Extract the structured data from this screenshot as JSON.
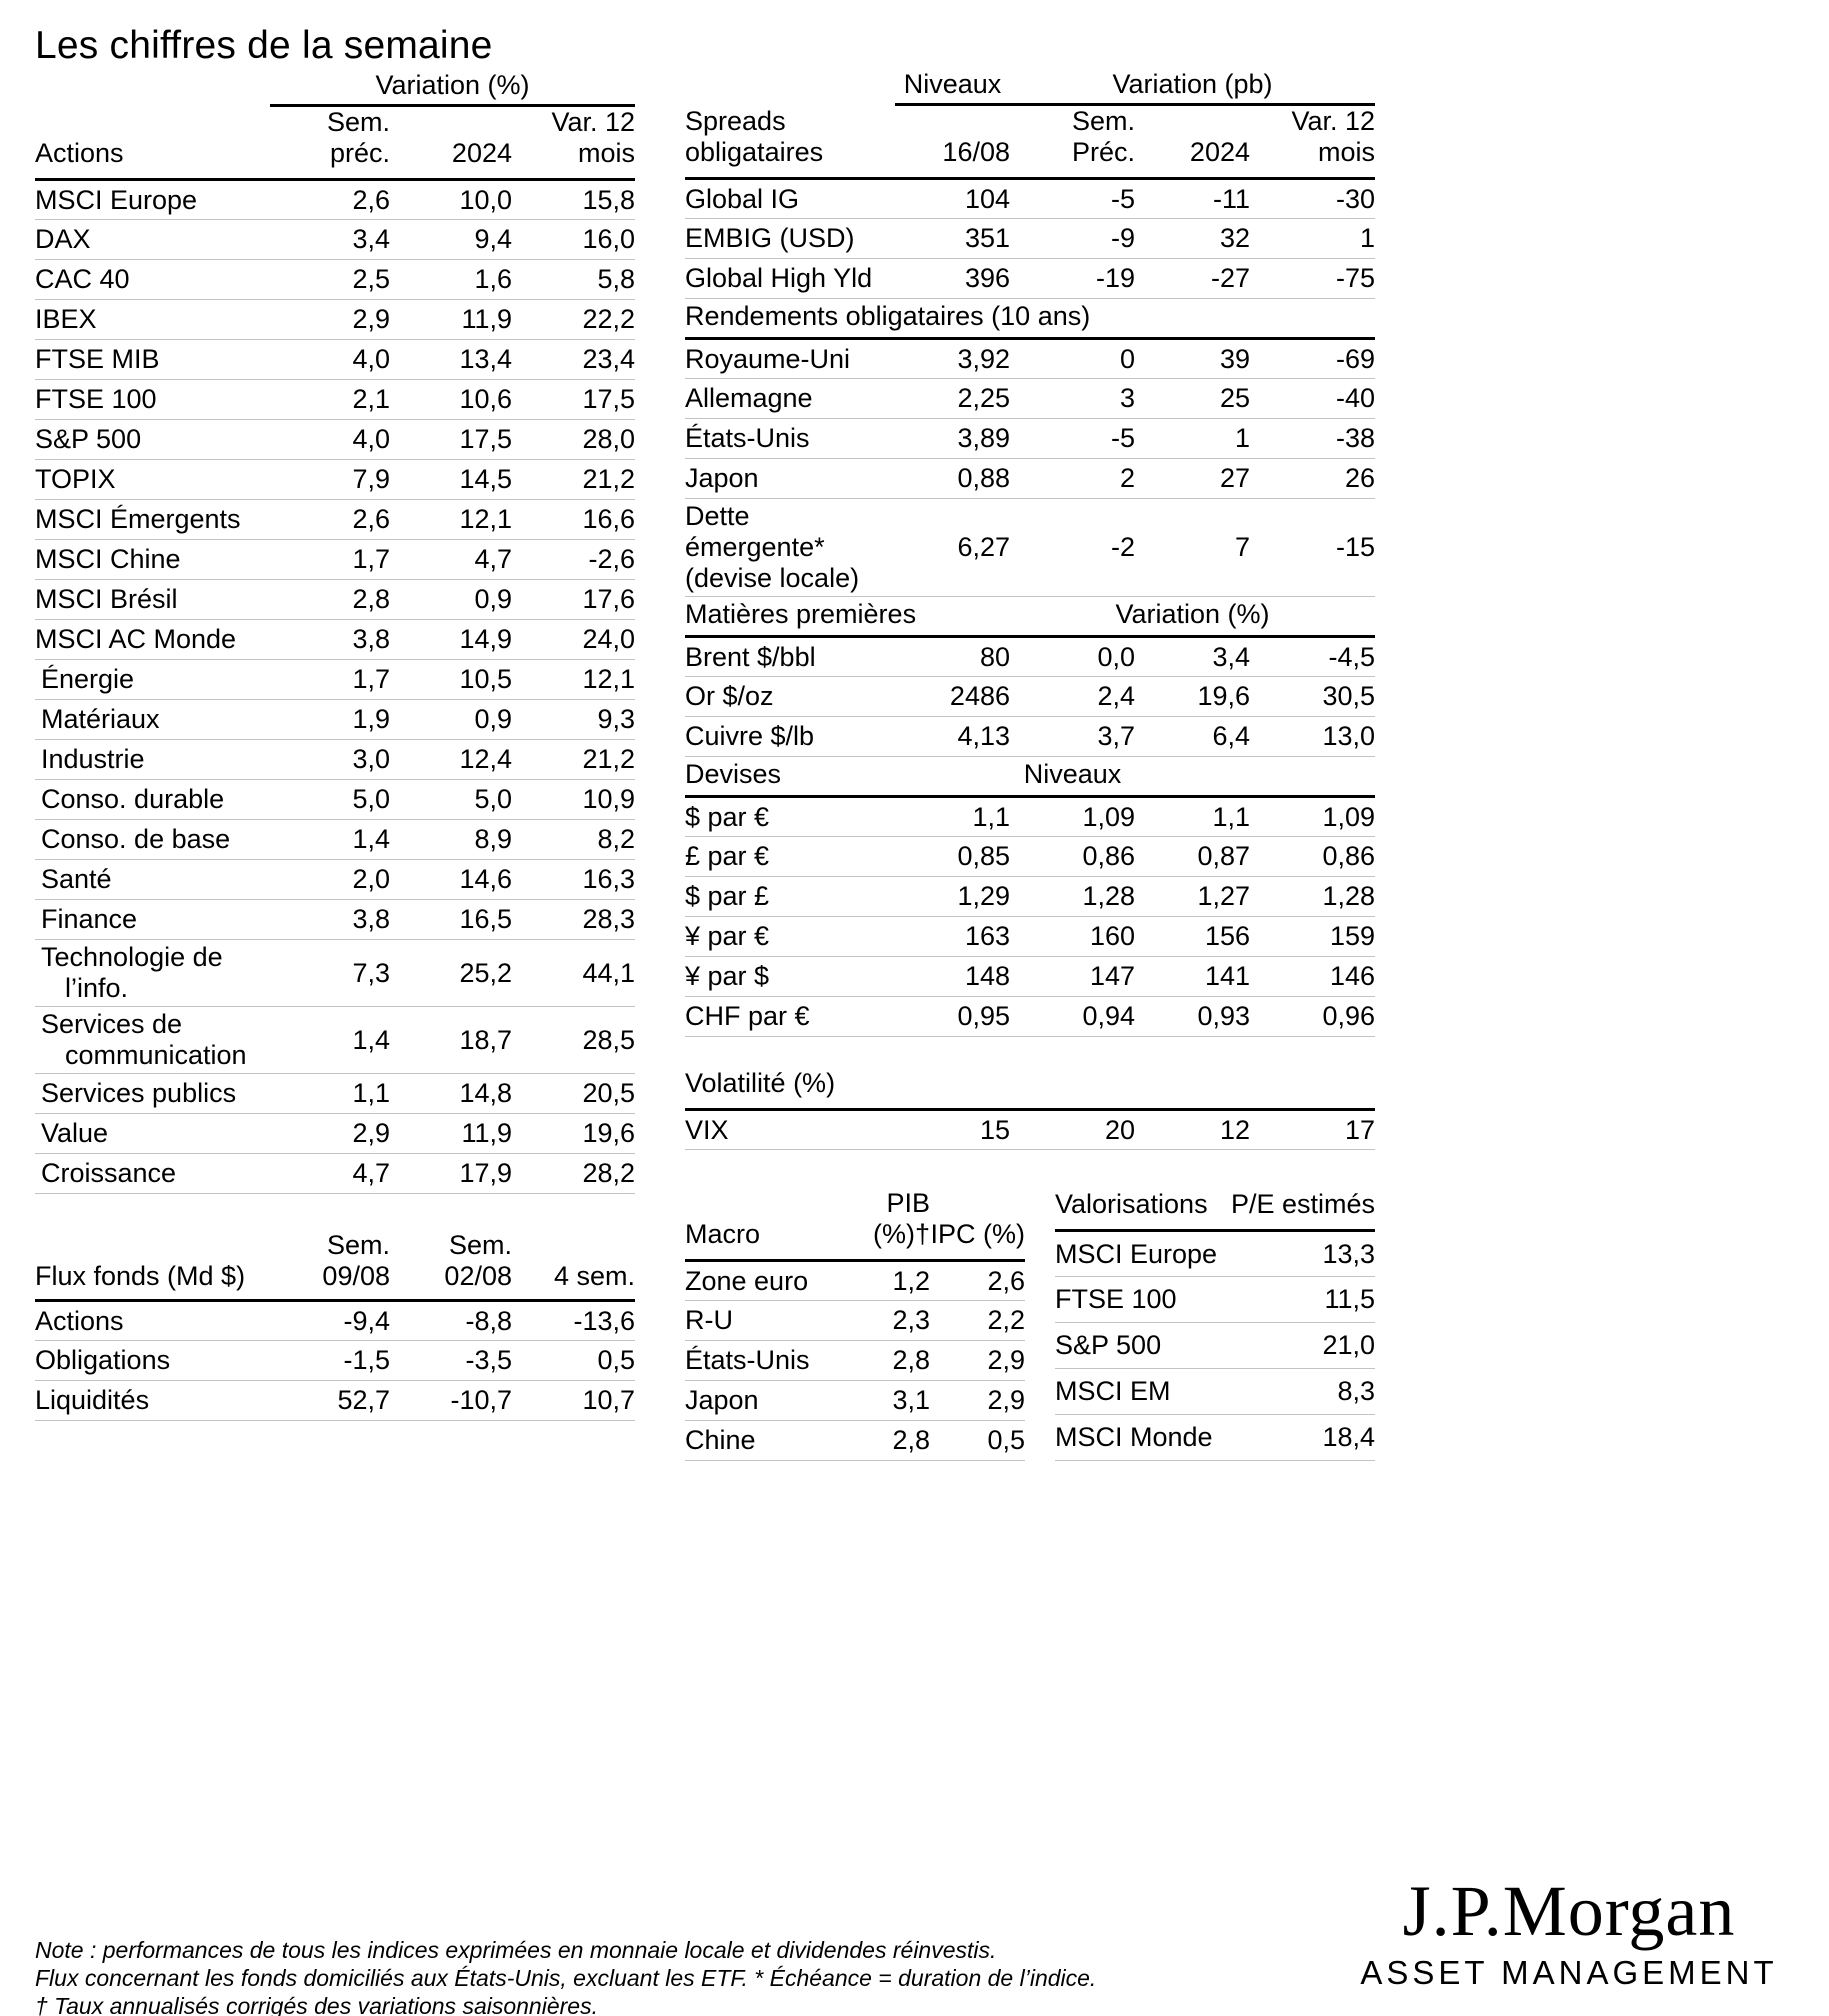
{
  "title": "Les chiffres de la semaine",
  "equities": {
    "group_header": "Variation (%)",
    "columns": [
      "Actions",
      "Sem. préc.",
      "2024",
      "Var. 12 mois"
    ],
    "rows": [
      {
        "label": "MSCI Europe",
        "values": [
          "2,6",
          "10,0",
          "15,8"
        ]
      },
      {
        "label": "DAX",
        "values": [
          "3,4",
          "9,4",
          "16,0"
        ]
      },
      {
        "label": "CAC 40",
        "values": [
          "2,5",
          "1,6",
          "5,8"
        ]
      },
      {
        "label": "IBEX",
        "values": [
          "2,9",
          "11,9",
          "22,2"
        ]
      },
      {
        "label": "FTSE MIB",
        "values": [
          "4,0",
          "13,4",
          "23,4"
        ]
      },
      {
        "label": "FTSE 100",
        "values": [
          "2,1",
          "10,6",
          "17,5"
        ]
      },
      {
        "label": "S&P 500",
        "values": [
          "4,0",
          "17,5",
          "28,0"
        ]
      },
      {
        "label": "TOPIX",
        "values": [
          "7,9",
          "14,5",
          "21,2"
        ]
      },
      {
        "label": "MSCI Émergents",
        "values": [
          "2,6",
          "12,1",
          "16,6"
        ]
      },
      {
        "label": "MSCI Chine",
        "values": [
          "1,7",
          "4,7",
          "-2,6"
        ]
      },
      {
        "label": "MSCI Brésil",
        "values": [
          "2,8",
          "0,9",
          "17,6"
        ]
      },
      {
        "label": "MSCI AC Monde",
        "values": [
          "3,8",
          "14,9",
          "24,0"
        ]
      },
      {
        "label": "Énergie",
        "indent": true,
        "values": [
          "1,7",
          "10,5",
          "12,1"
        ]
      },
      {
        "label": "Matériaux",
        "indent": true,
        "values": [
          "1,9",
          "0,9",
          "9,3"
        ]
      },
      {
        "label": "Industrie",
        "indent": true,
        "values": [
          "3,0",
          "12,4",
          "21,2"
        ]
      },
      {
        "label": "Conso. durable",
        "indent": true,
        "values": [
          "5,0",
          "5,0",
          "10,9"
        ]
      },
      {
        "label": "Conso. de base",
        "indent": true,
        "values": [
          "1,4",
          "8,9",
          "8,2"
        ]
      },
      {
        "label": "Santé",
        "indent": true,
        "values": [
          "2,0",
          "14,6",
          "16,3"
        ]
      },
      {
        "label": "Finance",
        "indent": true,
        "values": [
          "3,8",
          "16,5",
          "28,3"
        ]
      },
      {
        "label": "Technologie de\nl’info.",
        "indent": true,
        "hang": true,
        "values": [
          "7,3",
          "25,2",
          "44,1"
        ]
      },
      {
        "label": "Services de\ncommunication",
        "indent": true,
        "hang": true,
        "values": [
          "1,4",
          "18,7",
          "28,5"
        ]
      },
      {
        "label": "Services publics",
        "indent": true,
        "values": [
          "1,1",
          "14,8",
          "20,5"
        ]
      },
      {
        "label": "Value",
        "indent": true,
        "values": [
          "2,9",
          "11,9",
          "19,6"
        ]
      },
      {
        "label": "Croissance",
        "indent": true,
        "values": [
          "4,7",
          "17,9",
          "28,2"
        ]
      }
    ]
  },
  "flows": {
    "title_column": "Flux fonds (Md $)",
    "columns": [
      "Sem.\n09/08",
      "Sem.\n02/08",
      "4 sem."
    ],
    "rows": [
      {
        "label": "Actions",
        "values": [
          "-9,4",
          "-8,8",
          "-13,6"
        ]
      },
      {
        "label": "Obligations",
        "values": [
          "-1,5",
          "-3,5",
          "0,5"
        ]
      },
      {
        "label": "Liquidités",
        "values": [
          "52,7",
          "-10,7",
          "10,7"
        ]
      }
    ]
  },
  "bonds": {
    "top_groups": [
      "Niveaux",
      "Variation (pb)"
    ],
    "columns": [
      "Spreads\nobligataires",
      "16/08",
      "Sem. Préc.",
      "2024",
      "Var. 12 mois"
    ],
    "rows": [
      {
        "label": "Global IG",
        "values": [
          "104",
          "-5",
          "-11",
          "-30"
        ]
      },
      {
        "label": "EMBIG (USD)",
        "values": [
          "351",
          "-9",
          "32",
          "1"
        ]
      },
      {
        "label": "Global High Yld",
        "values": [
          "396",
          "-19",
          "-27",
          "-75"
        ]
      },
      {
        "section": "Rendements obligataires (10 ans)",
        "lspan": 5
      },
      {
        "label": "Royaume-Uni",
        "values": [
          "3,92",
          "0",
          "39",
          "-69"
        ]
      },
      {
        "label": "Allemagne",
        "values": [
          "2,25",
          "3",
          "25",
          "-40"
        ]
      },
      {
        "label": "États-Unis",
        "values": [
          "3,89",
          "-5",
          "1",
          "-38"
        ]
      },
      {
        "label": "Japon",
        "values": [
          "0,88",
          "2",
          "27",
          "26"
        ]
      },
      {
        "label": "Dette émergente*\n(devise locale)",
        "values": [
          "6,27",
          "-2",
          "7",
          "-15"
        ]
      },
      {
        "section": "Matières premières",
        "lspan": 2,
        "group": "Variation (%)",
        "gspan": 3
      },
      {
        "label": "Brent $/bbl",
        "values": [
          "80",
          "0,0",
          "3,4",
          "-4,5"
        ]
      },
      {
        "label": "Or $/oz",
        "values": [
          "2486",
          "2,4",
          "19,6",
          "30,5"
        ]
      },
      {
        "label": "Cuivre $/lb",
        "values": [
          "4,13",
          "3,7",
          "6,4",
          "13,0"
        ]
      },
      {
        "section": "Devises",
        "lspan": 1,
        "group": "Niveaux",
        "gspan": 3,
        "pad": 1
      },
      {
        "label": "$ par €",
        "values": [
          "1,1",
          "1,09",
          "1,1",
          "1,09"
        ]
      },
      {
        "label": "£ par €",
        "values": [
          "0,85",
          "0,86",
          "0,87",
          "0,86"
        ]
      },
      {
        "label": "$ par £",
        "values": [
          "1,29",
          "1,28",
          "1,27",
          "1,28"
        ]
      },
      {
        "label": "¥ par €",
        "values": [
          "163",
          "160",
          "156",
          "159"
        ]
      },
      {
        "label": "¥ par $",
        "values": [
          "148",
          "147",
          "141",
          "146"
        ]
      },
      {
        "label": "CHF par €",
        "values": [
          "0,95",
          "0,94",
          "0,93",
          "0,96"
        ]
      }
    ]
  },
  "volatility": {
    "title": "Volatilité (%)",
    "rows": [
      {
        "label": "VIX",
        "values": [
          "15",
          "20",
          "12",
          "17"
        ]
      }
    ]
  },
  "macro": {
    "columns": [
      "Macro",
      "PIB (%)†",
      "IPC (%)"
    ],
    "rows": [
      {
        "label": "Zone euro",
        "values": [
          "1,2",
          "2,6"
        ]
      },
      {
        "label": "R-U",
        "values": [
          "2,3",
          "2,2"
        ]
      },
      {
        "label": "États-Unis",
        "values": [
          "2,8",
          "2,9"
        ]
      },
      {
        "label": "Japon",
        "values": [
          "3,1",
          "2,9"
        ]
      },
      {
        "label": "Chine",
        "values": [
          "2,8",
          "0,5"
        ]
      }
    ]
  },
  "valuations": {
    "columns": [
      "Valorisations",
      "P/E estimés"
    ],
    "rows": [
      {
        "label": "MSCI Europe",
        "values": [
          "13,3"
        ]
      },
      {
        "label": "FTSE 100",
        "values": [
          "11,5"
        ]
      },
      {
        "label": "S&P 500",
        "values": [
          "21,0"
        ]
      },
      {
        "label": "MSCI EM",
        "values": [
          "8,3"
        ]
      },
      {
        "label": "MSCI Monde",
        "values": [
          "18,4"
        ]
      }
    ]
  },
  "notes": [
    "Note : performances de tous les indices exprimées en monnaie locale et dividendes réinvestis.",
    "Flux concernant les fonds domiciliés aux États-Unis, excluant les ETF. * Échéance = duration de l’indice.",
    "† Taux annualisés corrigés des variations saisonnières."
  ],
  "logo": {
    "wordmark": "J.P.Morgan",
    "subtitle": "ASSET MANAGEMENT"
  }
}
